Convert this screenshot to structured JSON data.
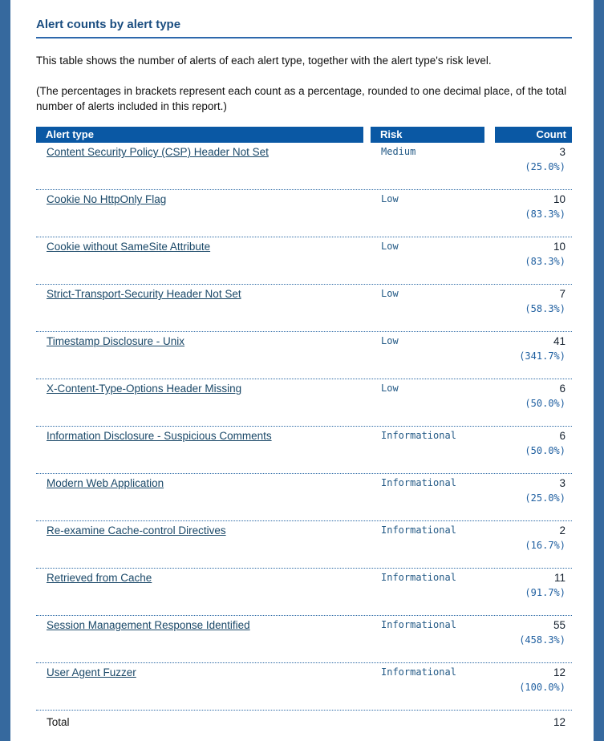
{
  "page": {
    "title": "Alert counts by alert type",
    "description": "This table shows the number of alerts of each alert type, together with the alert type's risk level.",
    "note": "(The percentages in brackets represent each count as a percentage, rounded to one decimal place, of the total number of alerts included in this report.)"
  },
  "colors": {
    "side_stripe": "#36699e",
    "table_header_bg": "#0a58a4",
    "title_text": "#1a4d80",
    "title_rule": "#2d68ac",
    "link_text": "#1a4868",
    "risk_text": "#245a86",
    "percent_text": "#1f5fa0",
    "count_text": "#14202e",
    "row_divider": "#2e6ba6"
  },
  "table": {
    "columns": [
      "Alert type",
      "Risk",
      "Count"
    ],
    "rows": [
      {
        "name": "Content Security Policy (CSP) Header Not Set",
        "risk": "Medium",
        "count": "3",
        "percent": "(25.0%)"
      },
      {
        "name": "Cookie No HttpOnly Flag",
        "risk": "Low",
        "count": "10",
        "percent": "(83.3%)"
      },
      {
        "name": "Cookie without SameSite Attribute",
        "risk": "Low",
        "count": "10",
        "percent": "(83.3%)"
      },
      {
        "name": "Strict-Transport-Security Header Not Set",
        "risk": "Low",
        "count": "7",
        "percent": "(58.3%)"
      },
      {
        "name": "Timestamp Disclosure - Unix",
        "risk": "Low",
        "count": "41",
        "percent": "(341.7%)"
      },
      {
        "name": "X-Content-Type-Options Header Missing",
        "risk": "Low",
        "count": "6",
        "percent": "(50.0%)"
      },
      {
        "name": "Information Disclosure - Suspicious Comments",
        "risk": "Informational",
        "count": "6",
        "percent": "(50.0%)"
      },
      {
        "name": "Modern Web Application",
        "risk": "Informational",
        "count": "3",
        "percent": "(25.0%)"
      },
      {
        "name": "Re-examine Cache-control Directives",
        "risk": "Informational",
        "count": "2",
        "percent": "(16.7%)"
      },
      {
        "name": "Retrieved from Cache",
        "risk": "Informational",
        "count": "11",
        "percent": "(91.7%)"
      },
      {
        "name": "Session Management Response Identified",
        "risk": "Informational",
        "count": "55",
        "percent": "(458.3%)"
      },
      {
        "name": "User Agent Fuzzer",
        "risk": "Informational",
        "count": "12",
        "percent": "(100.0%)"
      }
    ],
    "total_label": "Total",
    "total_count": "12"
  }
}
